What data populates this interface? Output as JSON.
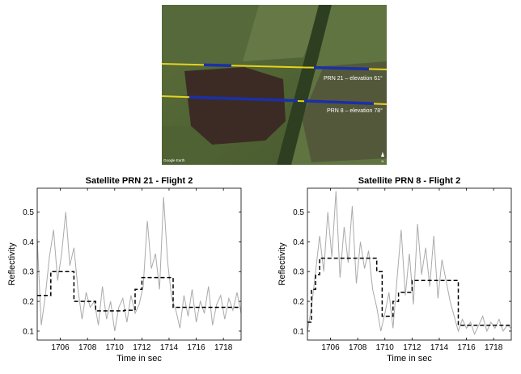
{
  "image": {
    "labels": [
      "PRN 21 – elevation 61°",
      "PRN 8 – elevation 78°"
    ],
    "watermark": "Google Earth",
    "north_label": "N"
  },
  "chart_data": [
    {
      "type": "line",
      "title": "Satellite PRN 21 - Flight 2",
      "xlabel": "Time in sec",
      "ylabel": "Reflectivity",
      "xlim": [
        1704.3,
        1719.3
      ],
      "ylim": [
        0.07,
        0.58
      ],
      "xticks": [
        1706,
        1708,
        1710,
        1712,
        1714,
        1716,
        1718
      ],
      "yticks": [
        0.1,
        0.2,
        0.3,
        0.4,
        0.5
      ],
      "grid": false,
      "series": [
        {
          "style": "raw",
          "color": "#aaaaaa",
          "x": [
            1704.3,
            1704.6,
            1704.9,
            1705.2,
            1705.5,
            1705.8,
            1706.1,
            1706.4,
            1706.7,
            1707.0,
            1707.3,
            1707.6,
            1707.9,
            1708.2,
            1708.5,
            1708.8,
            1709.1,
            1709.4,
            1709.7,
            1710.0,
            1710.3,
            1710.6,
            1710.9,
            1711.2,
            1711.5,
            1711.8,
            1712.1,
            1712.4,
            1712.7,
            1713.0,
            1713.3,
            1713.6,
            1713.9,
            1714.2,
            1714.5,
            1714.8,
            1715.1,
            1715.4,
            1715.7,
            1716.0,
            1716.3,
            1716.6,
            1716.9,
            1717.2,
            1717.5,
            1717.8,
            1718.1,
            1718.4,
            1718.7,
            1719.0,
            1719.3
          ],
          "y": [
            0.41,
            0.12,
            0.22,
            0.35,
            0.44,
            0.27,
            0.36,
            0.5,
            0.32,
            0.38,
            0.24,
            0.14,
            0.23,
            0.18,
            0.2,
            0.12,
            0.25,
            0.14,
            0.2,
            0.1,
            0.18,
            0.21,
            0.13,
            0.22,
            0.16,
            0.19,
            0.25,
            0.47,
            0.31,
            0.36,
            0.24,
            0.55,
            0.33,
            0.21,
            0.17,
            0.11,
            0.22,
            0.15,
            0.24,
            0.13,
            0.2,
            0.16,
            0.25,
            0.12,
            0.19,
            0.22,
            0.14,
            0.21,
            0.17,
            0.23,
            0.16
          ]
        },
        {
          "style": "mean",
          "color": "#000000",
          "x": [
            1704.3,
            1705.3,
            1705.3,
            1707.0,
            1707.0,
            1708.6,
            1708.6,
            1710.7,
            1710.7,
            1711.5,
            1711.5,
            1712.0,
            1712.0,
            1714.3,
            1714.3,
            1719.3
          ],
          "y": [
            0.22,
            0.22,
            0.3,
            0.3,
            0.2,
            0.2,
            0.168,
            0.168,
            0.17,
            0.17,
            0.24,
            0.24,
            0.28,
            0.28,
            0.18,
            0.18
          ]
        }
      ]
    },
    {
      "type": "line",
      "title": "Satellite PRN 8 - Flight 2",
      "xlabel": "Time in sec",
      "ylabel": "Reflectivity",
      "xlim": [
        1704.3,
        1719.3
      ],
      "ylim": [
        0.07,
        0.58
      ],
      "xticks": [
        1706,
        1708,
        1710,
        1712,
        1714,
        1716,
        1718
      ],
      "yticks": [
        0.1,
        0.2,
        0.3,
        0.4,
        0.5
      ],
      "grid": false,
      "series": [
        {
          "style": "raw",
          "color": "#aaaaaa",
          "x": [
            1704.3,
            1704.6,
            1704.9,
            1705.2,
            1705.5,
            1705.8,
            1706.1,
            1706.4,
            1706.7,
            1707.0,
            1707.3,
            1707.6,
            1707.9,
            1708.2,
            1708.5,
            1708.8,
            1709.1,
            1709.4,
            1709.7,
            1710.0,
            1710.3,
            1710.6,
            1710.9,
            1711.2,
            1711.5,
            1711.8,
            1712.1,
            1712.4,
            1712.7,
            1713.0,
            1713.3,
            1713.6,
            1713.9,
            1714.2,
            1714.5,
            1714.8,
            1715.1,
            1715.4,
            1715.7,
            1716.0,
            1716.3,
            1716.6,
            1716.9,
            1717.2,
            1717.5,
            1717.8,
            1718.1,
            1718.4,
            1718.7,
            1719.0,
            1719.3
          ],
          "y": [
            0.1,
            0.18,
            0.3,
            0.42,
            0.3,
            0.5,
            0.35,
            0.57,
            0.28,
            0.45,
            0.33,
            0.52,
            0.26,
            0.4,
            0.31,
            0.37,
            0.24,
            0.18,
            0.1,
            0.16,
            0.23,
            0.11,
            0.28,
            0.44,
            0.22,
            0.36,
            0.19,
            0.46,
            0.29,
            0.38,
            0.25,
            0.42,
            0.21,
            0.34,
            0.27,
            0.2,
            0.15,
            0.1,
            0.14,
            0.11,
            0.13,
            0.09,
            0.12,
            0.15,
            0.1,
            0.13,
            0.11,
            0.14,
            0.1,
            0.12,
            0.11
          ]
        },
        {
          "style": "mean",
          "color": "#000000",
          "x": [
            1704.3,
            1704.6,
            1704.6,
            1704.9,
            1704.9,
            1705.2,
            1705.2,
            1709.4,
            1709.4,
            1709.8,
            1709.8,
            1710.6,
            1710.6,
            1711.0,
            1711.0,
            1712.0,
            1712.0,
            1715.4,
            1715.4,
            1719.3
          ],
          "y": [
            0.13,
            0.13,
            0.24,
            0.24,
            0.29,
            0.29,
            0.345,
            0.345,
            0.3,
            0.3,
            0.15,
            0.15,
            0.2,
            0.2,
            0.23,
            0.23,
            0.27,
            0.27,
            0.12,
            0.12
          ]
        }
      ]
    }
  ]
}
